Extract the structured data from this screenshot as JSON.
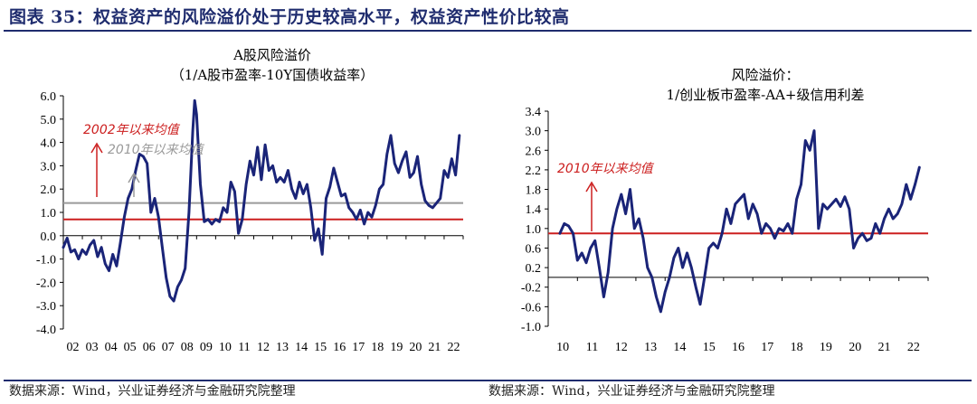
{
  "figure": {
    "title": "图表 35：权益资产的风险溢价处于历史较高水平，权益资产性价比较高",
    "source_left": "数据来源：Wind，兴业证券经济与金融研究院整理",
    "source_right": "数据来源：Wind，兴业证券经济与金融研究院整理"
  },
  "colors": {
    "series": "#1a2478",
    "avg": "#cc1f1f",
    "avg2": "#9a9a9a",
    "axis": "#000000"
  },
  "chart_data": [
    {
      "type": "line",
      "title": "A股风险溢价",
      "subtitle": "（1/A股市盈率-10Y国债收益率）",
      "ylim": [
        -4.0,
        6.0
      ],
      "yticks": [
        "6.0",
        "5.0",
        "4.0",
        "3.0",
        "2.0",
        "1.0",
        "0.0",
        "-1.0",
        "-2.0",
        "-3.0",
        "-4.0"
      ],
      "yticks_values": [
        6,
        5,
        4,
        3,
        2,
        1,
        0,
        -1,
        -2,
        -3,
        -4
      ],
      "xticks": [
        "02",
        "03",
        "04",
        "05",
        "06",
        "07",
        "08",
        "09",
        "10",
        "11",
        "12",
        "13",
        "14",
        "15",
        "16",
        "17",
        "18",
        "19",
        "20",
        "21",
        "22"
      ],
      "xlim": [
        2002,
        2023
      ],
      "reference_lines": [
        {
          "label": "2002年以来均值",
          "value": 0.7,
          "color": "#cc1f1f"
        },
        {
          "label": "2010年以来均值",
          "value": 1.4,
          "color": "#9a9a9a"
        }
      ],
      "series": [
        {
          "x": [
            2002.0,
            2002.2,
            2002.4,
            2002.6,
            2002.8,
            2003.0,
            2003.2,
            2003.4,
            2003.6,
            2003.8,
            2004.0,
            2004.2,
            2004.4,
            2004.6,
            2004.8,
            2005.0,
            2005.2,
            2005.4,
            2005.6,
            2005.8,
            2006.0,
            2006.2,
            2006.4,
            2006.6,
            2006.8,
            2007.0,
            2007.2,
            2007.4,
            2007.6,
            2007.8,
            2008.0,
            2008.2,
            2008.4,
            2008.6,
            2008.8,
            2008.9,
            2009.0,
            2009.2,
            2009.4,
            2009.6,
            2009.8,
            2010.0,
            2010.2,
            2010.4,
            2010.6,
            2010.8,
            2011.0,
            2011.2,
            2011.4,
            2011.6,
            2011.8,
            2012.0,
            2012.2,
            2012.4,
            2012.6,
            2012.8,
            2013.0,
            2013.2,
            2013.4,
            2013.6,
            2013.8,
            2014.0,
            2014.2,
            2014.4,
            2014.6,
            2014.8,
            2015.0,
            2015.2,
            2015.4,
            2015.6,
            2015.8,
            2016.0,
            2016.2,
            2016.4,
            2016.6,
            2016.8,
            2017.0,
            2017.2,
            2017.4,
            2017.6,
            2017.8,
            2018.0,
            2018.2,
            2018.4,
            2018.6,
            2018.8,
            2019.0,
            2019.2,
            2019.4,
            2019.6,
            2019.8,
            2020.0,
            2020.2,
            2020.4,
            2020.6,
            2020.8,
            2021.0,
            2021.2,
            2021.4,
            2021.6,
            2021.8,
            2022.0,
            2022.2,
            2022.4,
            2022.6,
            2022.8
          ],
          "values": [
            -0.5,
            -0.1,
            -0.7,
            -0.6,
            -1.0,
            -0.6,
            -0.8,
            -0.4,
            -0.2,
            -0.9,
            -0.5,
            -1.2,
            -1.5,
            -0.8,
            -1.3,
            -0.3,
            0.8,
            1.6,
            2.0,
            2.8,
            3.5,
            3.4,
            3.1,
            1.0,
            1.6,
            0.8,
            -0.5,
            -1.8,
            -2.6,
            -2.8,
            -2.2,
            -1.9,
            -1.4,
            1.0,
            4.5,
            5.8,
            5.2,
            2.2,
            0.6,
            0.7,
            0.5,
            0.7,
            0.6,
            1.2,
            1.0,
            2.3,
            1.9,
            0.1,
            0.7,
            2.2,
            3.2,
            2.6,
            3.8,
            2.4,
            3.9,
            2.8,
            3.0,
            2.3,
            2.5,
            2.3,
            2.8,
            2.0,
            1.6,
            2.3,
            1.8,
            2.2,
            1.2,
            -0.2,
            0.3,
            -0.8,
            1.6,
            2.1,
            2.9,
            2.3,
            1.7,
            1.8,
            1.2,
            1.0,
            0.7,
            1.1,
            0.5,
            1.0,
            0.8,
            1.3,
            2.0,
            2.2,
            3.5,
            4.3,
            3.1,
            2.7,
            3.2,
            3.6,
            2.5,
            2.7,
            3.4,
            2.2,
            1.5,
            1.3,
            1.2,
            1.4,
            1.6,
            2.8,
            2.5,
            3.3,
            2.6,
            4.3
          ]
        }
      ]
    },
    {
      "type": "line",
      "title": "风险溢价：",
      "subtitle": "1/创业板市盈率-AA+级信用利差",
      "ylim": [
        -1.0,
        3.4
      ],
      "yticks": [
        "3.4",
        "3.0",
        "2.6",
        "2.2",
        "1.8",
        "1.4",
        "1.0",
        "0.6",
        "0.2",
        "-0.2",
        "-0.6",
        "-1.0"
      ],
      "yticks_values": [
        3.4,
        3.0,
        2.6,
        2.2,
        1.8,
        1.4,
        1.0,
        0.6,
        0.2,
        -0.2,
        -0.6,
        -1.0
      ],
      "xticks": [
        "10",
        "11",
        "12",
        "13",
        "14",
        "15",
        "16",
        "17",
        "18",
        "19",
        "20",
        "21",
        "22"
      ],
      "xlim": [
        2010,
        2023
      ],
      "reference_lines": [
        {
          "label": "2010年以来均值",
          "value": 0.9,
          "color": "#cc1f1f"
        }
      ],
      "series": [
        {
          "x": [
            2010.4,
            2010.55,
            2010.7,
            2010.85,
            2011.0,
            2011.15,
            2011.3,
            2011.45,
            2011.6,
            2011.75,
            2011.9,
            2012.05,
            2012.2,
            2012.35,
            2012.5,
            2012.65,
            2012.8,
            2012.95,
            2013.1,
            2013.25,
            2013.4,
            2013.55,
            2013.7,
            2013.85,
            2014.0,
            2014.15,
            2014.3,
            2014.45,
            2014.6,
            2014.75,
            2014.9,
            2015.05,
            2015.2,
            2015.35,
            2015.5,
            2015.65,
            2015.8,
            2015.95,
            2016.1,
            2016.25,
            2016.4,
            2016.55,
            2016.7,
            2016.85,
            2017.0,
            2017.15,
            2017.3,
            2017.45,
            2017.6,
            2017.75,
            2017.9,
            2018.05,
            2018.2,
            2018.35,
            2018.5,
            2018.65,
            2018.8,
            2018.95,
            2019.1,
            2019.25,
            2019.4,
            2019.55,
            2019.7,
            2019.85,
            2020.0,
            2020.15,
            2020.3,
            2020.45,
            2020.6,
            2020.75,
            2020.9,
            2021.05,
            2021.2,
            2021.35,
            2021.5,
            2021.65,
            2021.8,
            2021.95,
            2022.1,
            2022.25,
            2022.4,
            2022.55,
            2022.7
          ],
          "values": [
            0.9,
            1.1,
            1.05,
            0.9,
            0.35,
            0.5,
            0.3,
            0.6,
            0.75,
            0.2,
            -0.4,
            0.1,
            1.0,
            1.4,
            1.7,
            1.3,
            1.8,
            1.0,
            1.2,
            0.8,
            0.2,
            0.0,
            -0.4,
            -0.7,
            -0.3,
            0.0,
            0.4,
            0.6,
            0.2,
            0.5,
            0.2,
            -0.2,
            -0.55,
            0.0,
            0.6,
            0.7,
            0.6,
            0.9,
            1.4,
            1.1,
            1.5,
            1.6,
            1.7,
            1.2,
            1.5,
            1.3,
            0.9,
            1.1,
            1.0,
            0.8,
            1.0,
            0.95,
            1.1,
            0.9,
            1.6,
            1.9,
            2.8,
            2.6,
            3.0,
            1.0,
            1.5,
            1.4,
            1.5,
            1.6,
            1.45,
            1.65,
            1.4,
            0.6,
            0.8,
            0.9,
            0.75,
            0.8,
            1.1,
            0.9,
            1.2,
            1.4,
            1.2,
            1.3,
            1.5,
            1.9,
            1.6,
            1.9,
            2.25
          ]
        }
      ]
    }
  ]
}
